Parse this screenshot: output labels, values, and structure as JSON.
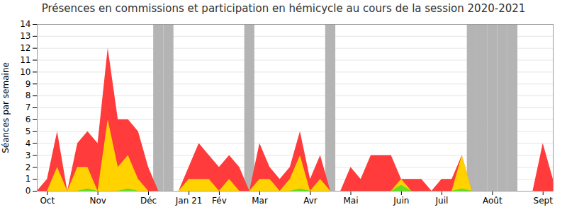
{
  "chart_data": {
    "type": "area",
    "title": "Présences en commissions et participation en hémicycle au cours de la session 2020-2021",
    "y_label": "Séances par semaine",
    "categories": [
      null,
      "Oct",
      null,
      null,
      null,
      null,
      "Nov",
      null,
      null,
      null,
      null,
      "Déc",
      null,
      null,
      null,
      "Jan 21",
      null,
      null,
      "Fév",
      null,
      null,
      null,
      "Mar",
      null,
      null,
      null,
      null,
      "Avr",
      null,
      null,
      null,
      "Mai",
      null,
      null,
      null,
      null,
      "Juin",
      null,
      null,
      null,
      "Juil",
      null,
      null,
      null,
      null,
      "Août",
      null,
      null,
      null,
      null,
      "Sept",
      null
    ],
    "series": [
      {
        "type": "bar",
        "color": "#b4b4b4",
        "values": [
          null,
          null,
          null,
          null,
          null,
          null,
          null,
          null,
          null,
          null,
          null,
          null,
          14,
          14,
          null,
          null,
          null,
          null,
          null,
          null,
          null,
          14,
          null,
          null,
          null,
          null,
          null,
          null,
          null,
          14,
          null,
          null,
          null,
          null,
          null,
          null,
          null,
          null,
          null,
          null,
          null,
          null,
          null,
          14,
          14,
          14,
          14,
          14,
          null,
          null,
          null,
          null
        ]
      },
      {
        "type": "area",
        "color": "#ff3b3b",
        "values": [
          0,
          1,
          5,
          0,
          4,
          5,
          4,
          12,
          6,
          6,
          5,
          2,
          0,
          0,
          0,
          2,
          4,
          3,
          2,
          3,
          2,
          0,
          4,
          2,
          1,
          2,
          5,
          1,
          3,
          0,
          0,
          2,
          1,
          3,
          3,
          3,
          1,
          1,
          1,
          0,
          1,
          1,
          3,
          0,
          0,
          0,
          0,
          0,
          0,
          0,
          4,
          1
        ]
      },
      {
        "type": "area",
        "color": "#ffd200",
        "values": [
          0,
          0,
          2,
          0,
          2,
          2,
          0,
          6,
          2,
          3,
          1,
          0,
          0,
          0,
          0,
          1,
          1,
          1,
          0,
          1,
          0,
          0,
          1,
          1,
          0,
          1,
          3,
          0,
          1,
          0,
          0,
          0,
          0,
          0,
          0,
          0,
          1,
          0,
          0,
          0,
          0,
          0,
          3,
          0,
          0,
          0,
          0,
          0,
          0,
          0,
          0,
          0
        ]
      },
      {
        "type": "area",
        "color": "#66dd22",
        "values": [
          0,
          0,
          0,
          0,
          0,
          0.2,
          0,
          0,
          0,
          0.2,
          0,
          0,
          0,
          0,
          0,
          0,
          0,
          0,
          0,
          0,
          0,
          0,
          0,
          0,
          0,
          0,
          0.2,
          0,
          0,
          0,
          0,
          0,
          0,
          0,
          0,
          0,
          0.5,
          0,
          0,
          0,
          0,
          0,
          0.2,
          0,
          0,
          0,
          0,
          0,
          0,
          0,
          0,
          0
        ]
      }
    ],
    "stacked": false,
    "ylim": [
      0,
      14
    ],
    "yticks": [
      0,
      1,
      2,
      3,
      4,
      5,
      6,
      7,
      8,
      9,
      10,
      11,
      12,
      13,
      14
    ],
    "grid": true
  }
}
